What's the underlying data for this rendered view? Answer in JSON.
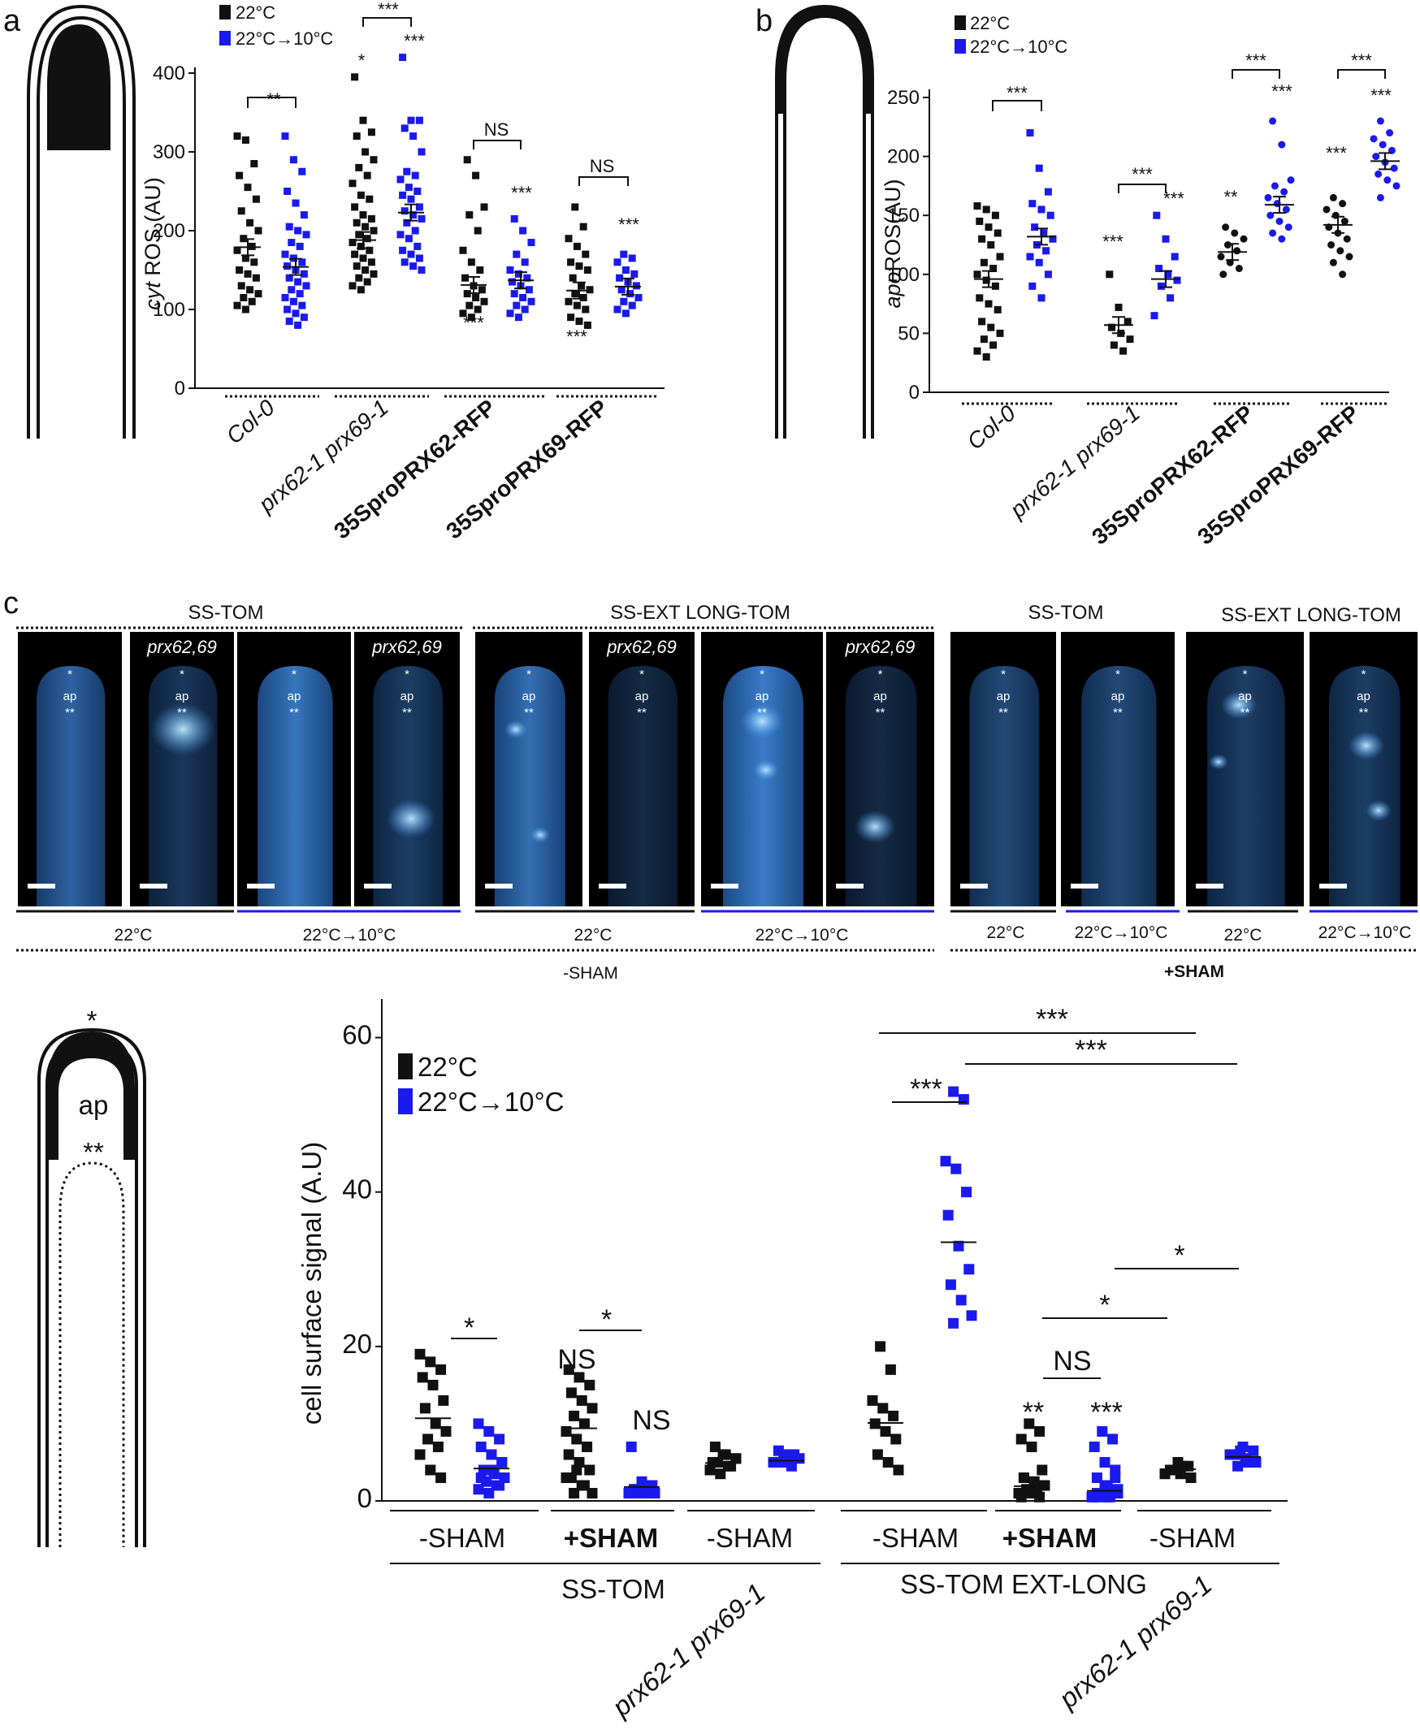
{
  "colors": {
    "black": "#111111",
    "blue": "#1a1aee"
  },
  "legend": {
    "control": "22°C",
    "cold": "22°C→10°C"
  },
  "panel_a": {
    "letter": "a",
    "ylabel_italic": "cyt",
    "ylabel_rest": " ROS (AU)",
    "yticks": [
      "0",
      "100",
      "200",
      "300",
      "400"
    ],
    "categories": [
      "Col-0",
      "prx62-1 prx69-1",
      "35SproPRX62-RFP",
      "35SproPRX69-RFP"
    ],
    "brackets": [
      "**",
      "***",
      "NS",
      "NS"
    ],
    "stars": [
      "*",
      "***",
      "***",
      "***",
      "***"
    ]
  },
  "panel_b": {
    "letter": "b",
    "ylabel_italic": "apo",
    "ylabel_rest": "ROS(AU)",
    "yticks": [
      "0",
      "50",
      "100",
      "150",
      "200",
      "250"
    ],
    "categories": [
      "Col-0",
      "prx62-1 prx69-1",
      "35SproPRX62-RFP",
      "35SproPRX69-RFP"
    ],
    "brackets": [
      "***",
      "***",
      "***",
      "***"
    ],
    "stars": [
      "***",
      "***",
      "**",
      "***",
      "***",
      "***"
    ]
  },
  "panel_c": {
    "letter": "c",
    "group_titles": [
      "SS-TOM",
      "SS-EXT LONG-TOM",
      "SS-TOM",
      "SS-EXT LONG-TOM"
    ],
    "mutant_label": "prx62,69",
    "marks": {
      "tip": "*",
      "apex": "ap",
      "sub": "**"
    },
    "temps": [
      "22°C",
      "22°C→10°C",
      "22°C",
      "22°C→10°C",
      "22°C",
      "22°C→10°C",
      "22°C",
      "22°C→10°C"
    ],
    "sham_minus": "-SHAM",
    "sham_plus": "+SHAM"
  },
  "panel_d": {
    "ylabel": "cell surface signal (A.U)",
    "yticks": [
      "0",
      "20",
      "40",
      "60"
    ],
    "schematic": {
      "tip": "*",
      "apex": "ap",
      "sub": "**"
    },
    "groups": [
      "-SHAM",
      "+SHAM",
      "-SHAM",
      "-SHAM",
      "+SHAM",
      "-SHAM"
    ],
    "lines": [
      "SS-TOM",
      "SS-TOM EXT-LONG"
    ],
    "mutant": "prx62-1 prx69-1",
    "annotations": [
      "*",
      "*",
      "NS",
      "NS",
      "***",
      "***",
      "***",
      "*",
      "*",
      "NS",
      "**",
      "***"
    ]
  },
  "chart_data": [
    {
      "type": "scatter",
      "ylabel": "cyt ROS (AU)",
      "ylim": [
        0,
        400
      ],
      "categories": [
        "Col-0",
        "prx62-1 prx69-1",
        "35SproPRX62-RFP",
        "35SproPRX69-RFP"
      ],
      "series": [
        {
          "name": "22°C",
          "mean": [
            179,
            188,
            131,
            124
          ],
          "points": [
            [
              320,
              315,
              285,
              270,
              255,
              240,
              225,
              210,
              200,
              190,
              180,
              175,
              165,
              160,
              150,
              145,
              140,
              130,
              125,
              120,
              115,
              110,
              105,
              100
            ],
            [
              395,
              340,
              325,
              320,
              300,
              290,
              280,
              270,
              260,
              245,
              240,
              230,
              220,
              215,
              210,
              205,
              200,
              195,
              190,
              185,
              180,
              175,
              170,
              165,
              160,
              155,
              150,
              145,
              140,
              135,
              130,
              125
            ],
            [
              290,
              270,
              230,
              220,
              200,
              175,
              160,
              150,
              140,
              130,
              125,
              120,
              115,
              110,
              105,
              100,
              95,
              90
            ],
            [
              230,
              205,
              190,
              180,
              170,
              160,
              155,
              150,
              140,
              130,
              125,
              120,
              115,
              110,
              105,
              100,
              90,
              85,
              80
            ]
          ]
        },
        {
          "name": "22°C→10°C",
          "mean": [
            154,
            223,
            137,
            129
          ],
          "points": [
            [
              320,
              290,
              275,
              250,
              235,
              220,
              205,
              200,
              195,
              185,
              180,
              170,
              165,
              160,
              155,
              150,
              145,
              140,
              135,
              130,
              125,
              120,
              115,
              110,
              105,
              100,
              95,
              90,
              85,
              80
            ],
            [
              420,
              340,
              340,
              330,
              320,
              300,
              275,
              270,
              265,
              255,
              250,
              245,
              240,
              230,
              225,
              220,
              215,
              210,
              200,
              195,
              190,
              180,
              175,
              170,
              165,
              160,
              155,
              150
            ],
            [
              215,
              200,
              185,
              170,
              160,
              150,
              145,
              140,
              135,
              130,
              125,
              120,
              115,
              110,
              105,
              100,
              95,
              90
            ],
            [
              170,
              165,
              160,
              150,
              145,
              140,
              135,
              130,
              125,
              120,
              115,
              110,
              105,
              100,
              95
            ]
          ]
        }
      ],
      "annotations": [
        "**",
        "***",
        "NS",
        "NS",
        "*",
        "***",
        "***",
        "***",
        "***"
      ]
    },
    {
      "type": "scatter",
      "ylabel": "apo ROS(AU)",
      "ylim": [
        0,
        250
      ],
      "categories": [
        "Col-0",
        "prx62-1 prx69-1",
        "35SproPRX62-RFP",
        "35SproPRX69-RFP"
      ],
      "series": [
        {
          "name": "22°C",
          "mean": [
            96,
            57,
            119,
            142
          ],
          "points": [
            [
              158,
              155,
              150,
              145,
              140,
              135,
              130,
              125,
              115,
              110,
              105,
              100,
              95,
              90,
              80,
              75,
              70,
              60,
              55,
              50,
              45,
              40,
              35,
              30
            ],
            [
              100,
              72,
              60,
              55,
              50,
              45,
              40,
              35
            ],
            [
              140,
              135,
              130,
              125,
              120,
              115,
              110,
              105,
              100
            ],
            [
              165,
              160,
              155,
              150,
              145,
              140,
              135,
              130,
              125,
              120,
              115,
              110,
              100
            ]
          ]
        },
        {
          "name": "22°C→10°C",
          "mean": [
            132,
            96,
            159,
            196
          ],
          "points": [
            [
              220,
              190,
              170,
              160,
              155,
              150,
              140,
              135,
              130,
              125,
              120,
              115,
              110,
              100,
              90,
              80
            ],
            [
              150,
              130,
              115,
              105,
              100,
              95,
              90,
              80,
              65
            ],
            [
              230,
              210,
              180,
              175,
              170,
              165,
              160,
              155,
              150,
              145,
              140,
              135,
              130
            ],
            [
              230,
              220,
              215,
              210,
              205,
              200,
              195,
              190,
              185,
              180,
              175,
              165
            ]
          ]
        }
      ],
      "annotations": [
        "***",
        "***",
        "***",
        "***",
        "***",
        "***",
        "**",
        "***",
        "***",
        "***"
      ]
    },
    {
      "type": "scatter",
      "ylabel": "cell surface signal (A.U)",
      "ylim": [
        0,
        65
      ],
      "categories": [
        "SS-TOM -SHAM",
        "SS-TOM +SHAM",
        "SS-TOM prx62-1 prx69-1 -SHAM",
        "SS-TOM EXT-LONG -SHAM",
        "SS-TOM EXT-LONG +SHAM",
        "SS-TOM EXT-LONG prx62-1 prx69-1 -SHAM"
      ],
      "series": [
        {
          "name": "22°C",
          "mean": [
            10.7,
            9.4,
            4.9,
            10.1,
            1.9,
            4.1
          ],
          "points": [
            [
              19,
              18,
              17,
              16,
              15,
              13,
              12,
              10,
              9,
              8,
              7,
              6,
              4,
              3
            ],
            [
              17,
              16,
              15,
              14,
              13,
              12,
              11,
              10,
              9,
              8,
              7,
              6,
              5,
              4,
              3,
              2,
              1,
              1,
              2,
              3,
              4
            ],
            [
              7,
              6,
              5.5,
              5,
              4.5,
              4,
              3.5,
              4.5,
              5,
              6
            ],
            [
              20,
              17,
              13,
              12,
              11,
              10,
              9,
              8,
              6,
              5,
              4
            ],
            [
              10,
              9,
              8,
              7,
              4,
              3,
              2.5,
              2,
              1.5,
              1,
              1,
              1,
              0.5,
              0.5,
              1,
              2,
              3,
              2
            ],
            [
              5,
              4.5,
              4,
              3.5,
              3,
              4,
              4.5,
              3.5
            ]
          ]
        },
        {
          "name": "22°C→10°C",
          "mean": [
            4.2,
            1.8,
            5.2,
            33.5,
            1.3,
            5.7
          ],
          "points": [
            [
              10,
              9,
              8,
              7,
              6,
              5,
              4,
              3.5,
              3,
              2.5,
              2,
              1.5,
              1,
              2,
              3,
              4,
              5
            ],
            [
              7,
              2.5,
              2,
              1.5,
              1,
              1,
              1.5,
              2,
              1,
              1
            ],
            [
              6.5,
              6,
              5.5,
              5,
              4.5,
              5,
              5.5,
              6
            ],
            [
              53,
              52,
              44,
              43,
              40,
              37,
              33,
              30,
              28,
              26,
              24,
              23
            ],
            [
              9,
              8,
              7,
              5,
              4,
              3,
              2,
              1.5,
              1,
              0.5,
              0.5,
              1,
              1,
              0.5,
              2,
              3,
              1,
              0.5,
              1,
              0.5
            ],
            [
              7,
              6.5,
              6,
              5.5,
              5,
              4.5,
              5,
              6,
              6.5,
              5
            ]
          ]
        }
      ],
      "annotations": [
        "*",
        "*",
        "NS",
        "NS",
        "***",
        "***",
        "***",
        "*",
        "*",
        "NS",
        "**",
        "***"
      ]
    }
  ]
}
